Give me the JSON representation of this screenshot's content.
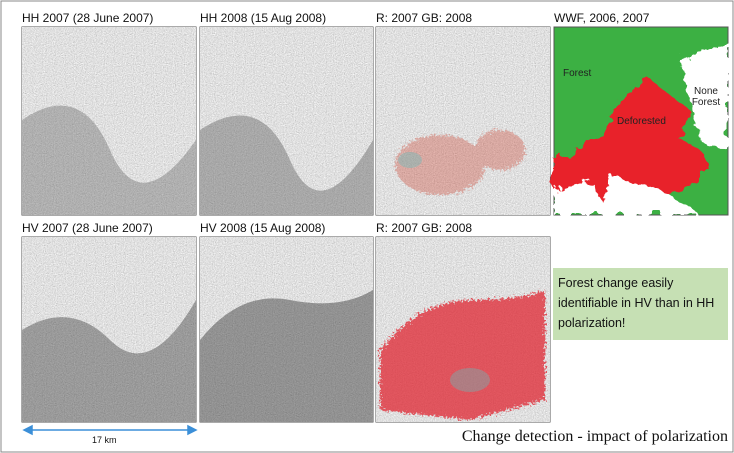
{
  "panels": [
    {
      "label": "HH 2007 (28 June 2007)"
    },
    {
      "label": "HH 2008 (15 Aug 2008)"
    },
    {
      "label": "R: 2007 GB: 2008"
    },
    {
      "label": "WWF, 2006, 2007"
    },
    {
      "label": "HV 2007 (28 June 2007)"
    },
    {
      "label": "HV 2008 (15 Aug 2008)"
    },
    {
      "label": "R: 2007 GB: 2008"
    }
  ],
  "map_labels": [
    "Forest",
    "Deforested",
    "None Forest"
  ],
  "note": "Forest change easily identifiable in HV than in HH polarization!",
  "scale_label": "17 km",
  "caption": "Change detection - impact of polarization"
}
